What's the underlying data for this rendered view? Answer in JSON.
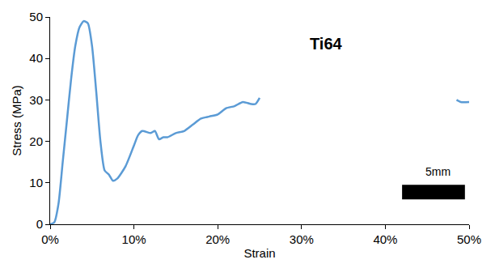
{
  "chart_data": {
    "type": "line",
    "x_label": "Strain",
    "y_label": "Stress (MPa)",
    "annotations": [
      "Ti64",
      "5mm"
    ],
    "x": [
      0,
      0.5,
      1,
      1.5,
      2,
      2.5,
      3,
      3.5,
      4,
      4.5,
      5,
      5.5,
      6,
      6.5,
      7,
      7.5,
      8,
      9,
      10,
      10.5,
      11,
      12,
      12.5,
      13,
      13.5,
      14,
      15,
      16,
      17,
      18,
      19,
      20,
      21,
      22,
      23,
      24,
      24.5,
      25,
      36,
      48.5,
      49,
      50
    ],
    "values": [
      0,
      0.5,
      5,
      15,
      25,
      35,
      43,
      47.5,
      49,
      48.5,
      43,
      32,
      20,
      13,
      12,
      10.5,
      11,
      14,
      19,
      21.5,
      22.5,
      22,
      22.5,
      20.5,
      21,
      21,
      22,
      22.5,
      24,
      25.5,
      26,
      26.5,
      28,
      28.5,
      29.5,
      29,
      29,
      30.5,
      null,
      30,
      29.5,
      29.5
    ],
    "color": "#5b9bd5",
    "xlim": [
      0,
      50
    ],
    "xticks": [
      {
        "value": 0,
        "label": "0%"
      },
      {
        "value": 10,
        "label": "10%"
      },
      {
        "value": 20,
        "label": "20%"
      },
      {
        "value": 30,
        "label": "30%"
      },
      {
        "value": 40,
        "label": "40%"
      },
      {
        "value": 50,
        "label": "50%"
      }
    ],
    "ylim": [
      0,
      50
    ],
    "yticks": [
      0,
      10,
      20,
      30,
      40,
      50
    ],
    "grid": false
  }
}
